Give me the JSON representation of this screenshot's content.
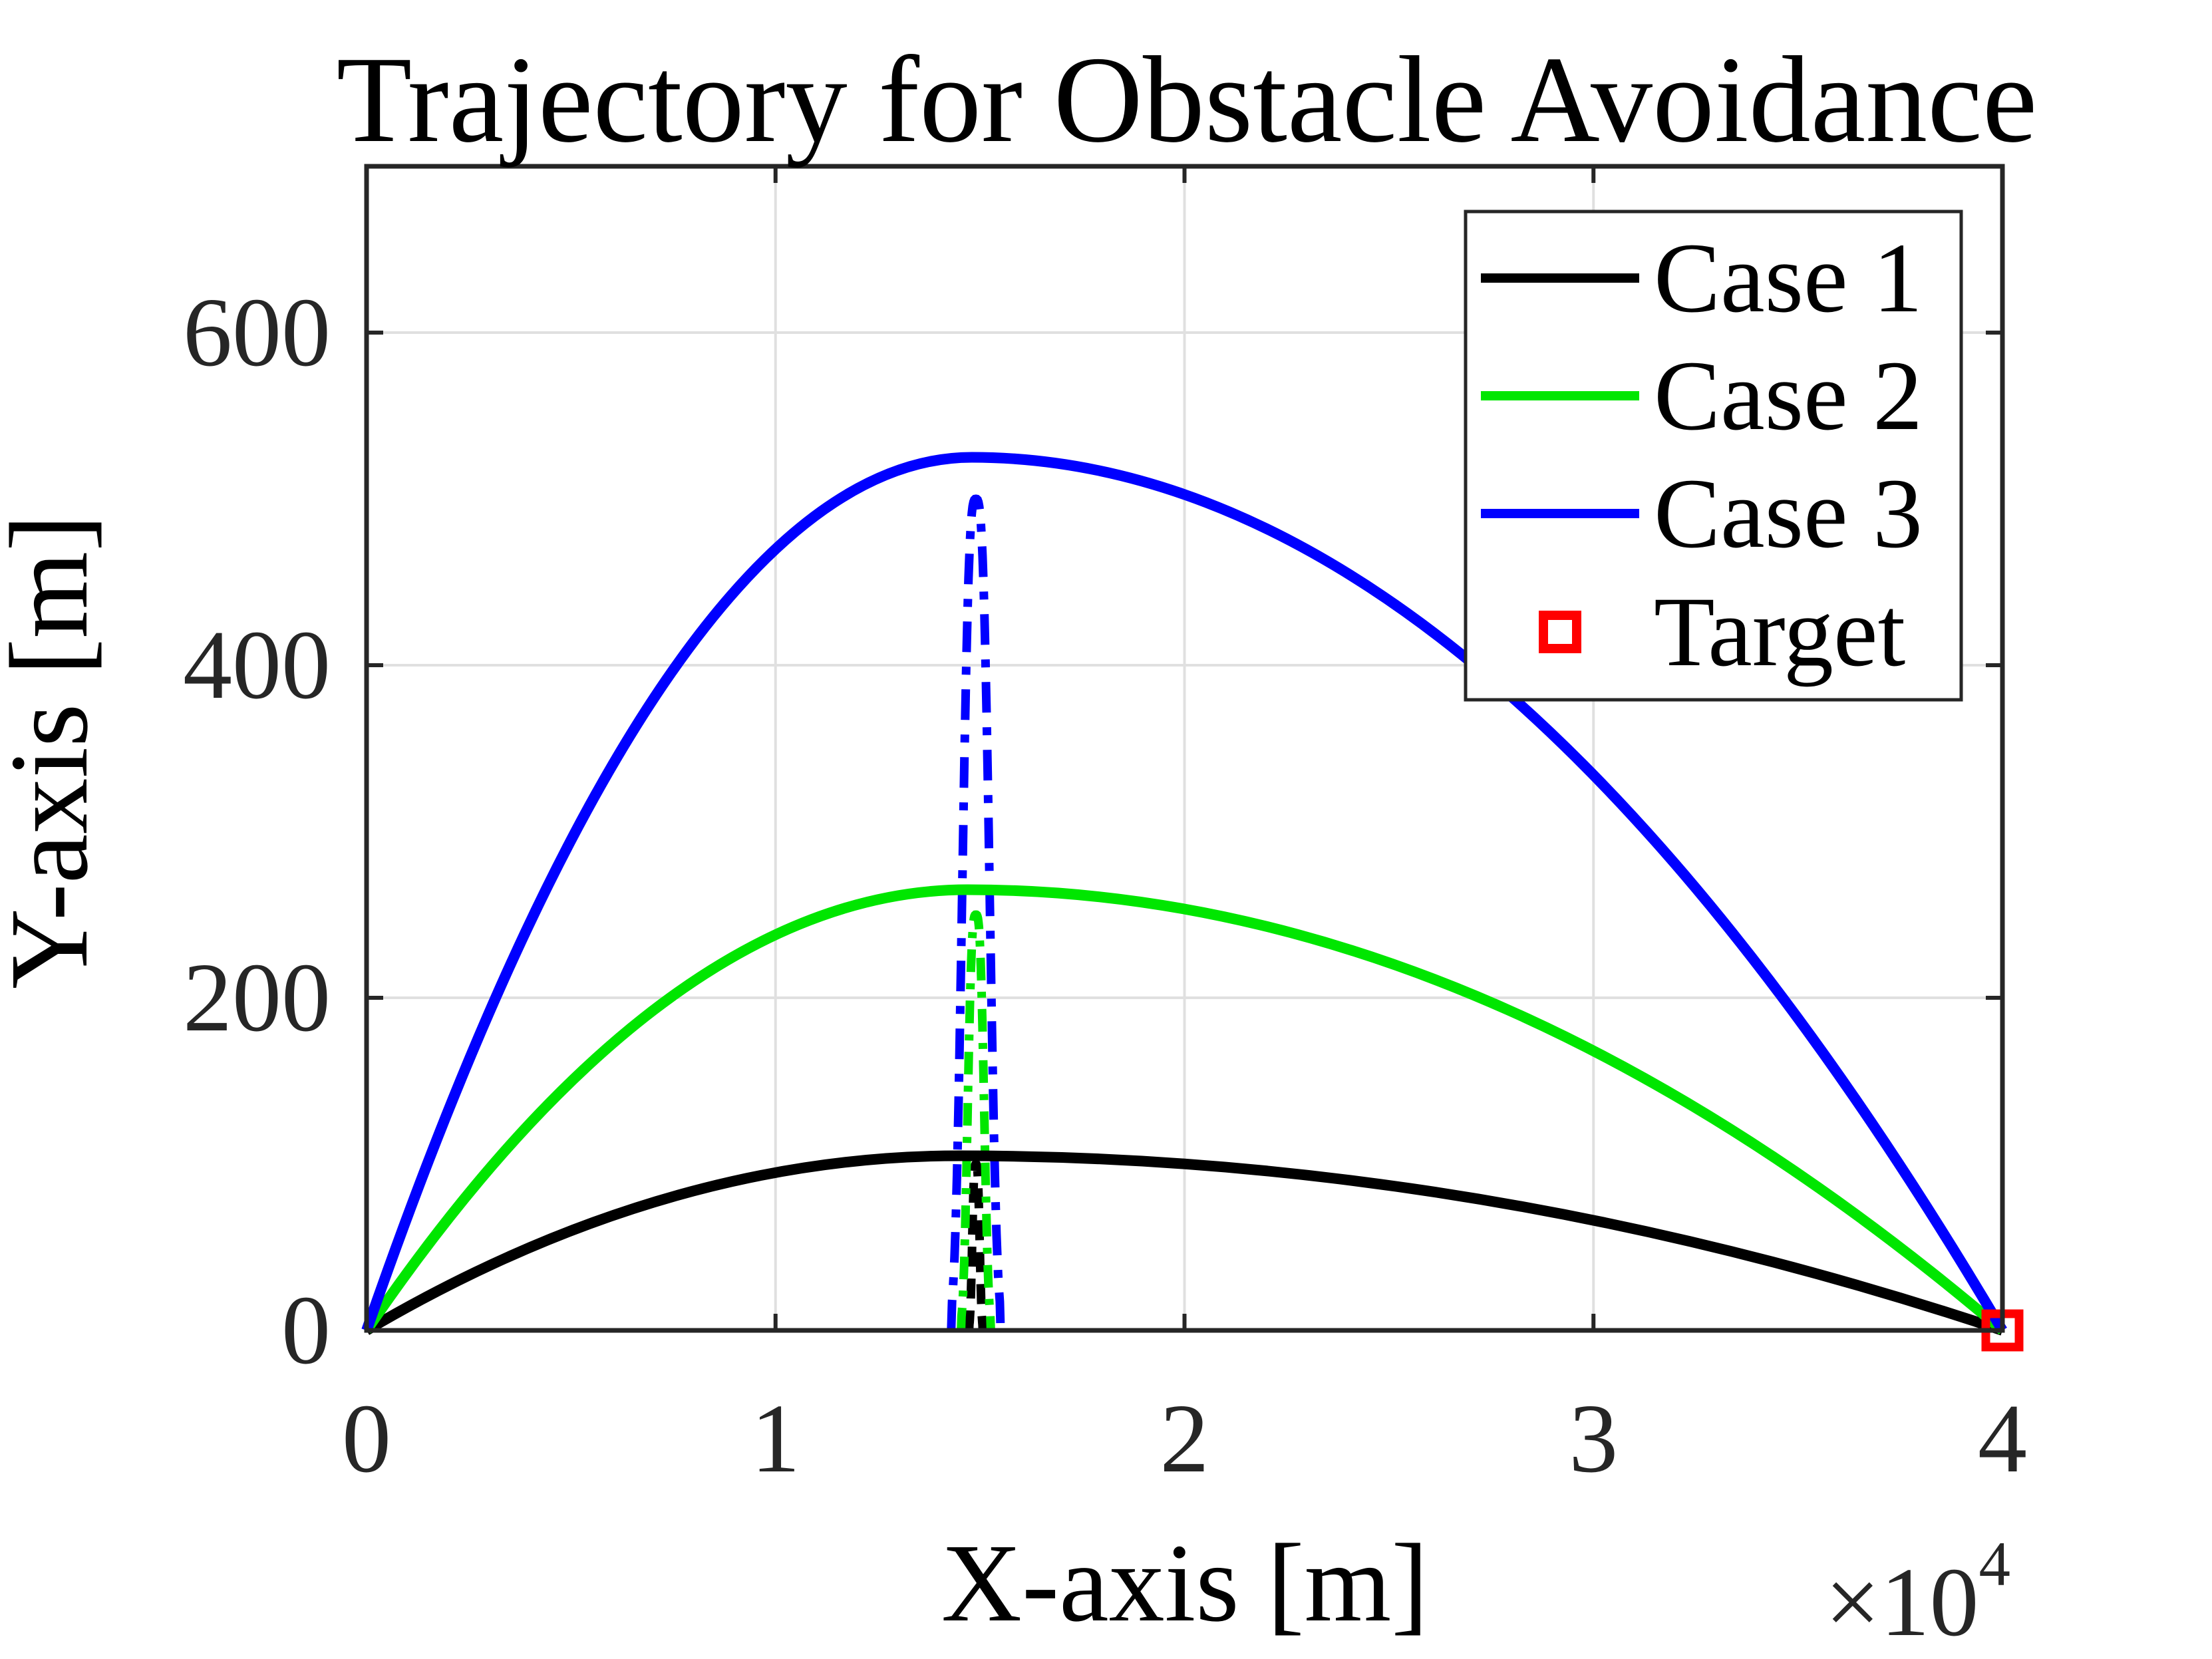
{
  "chart_data": {
    "type": "line",
    "title": "Trajectory for Obstacle Avoidance",
    "xlabel": "X-axis [m]",
    "ylabel": "Y-axis [m]",
    "xlim": [
      0,
      40000
    ],
    "ylim": [
      0,
      700
    ],
    "x_ticks": [
      0,
      10000,
      20000,
      30000,
      40000
    ],
    "x_tick_labels": [
      "0",
      "1",
      "2",
      "3",
      "4"
    ],
    "x_multiplier_base": "×10",
    "x_multiplier_exp": "4",
    "y_ticks": [
      0,
      200,
      400,
      600
    ],
    "y_tick_labels": [
      "0",
      "200",
      "400",
      "600"
    ],
    "grid": true,
    "legend_position": "northeast",
    "axis_color": "#262626",
    "grid_color": "#e0e0e0",
    "series": [
      {
        "name": "Case 1",
        "color": "#000000",
        "line_style": "solid",
        "start_m": [
          0,
          0
        ],
        "apex_m": [
          14500,
          105
        ],
        "end_m": [
          40000,
          0
        ],
        "points": {
          "x_m": [
            0,
            5000,
            10000,
            14500,
            20000,
            25000,
            30000,
            35000,
            40000
          ],
          "y_m": [
            0,
            60,
            95,
            105,
            100,
            87,
            66,
            37,
            0
          ]
        }
      },
      {
        "name": "Case 2",
        "color": "#00e600",
        "line_style": "solid",
        "start_m": [
          0,
          0
        ],
        "apex_m": [
          14700,
          265
        ],
        "end_m": [
          40000,
          0
        ],
        "points": {
          "x_m": [
            0,
            5000,
            10000,
            14700,
            20000,
            25000,
            30000,
            35000,
            40000
          ],
          "y_m": [
            0,
            150,
            238,
            265,
            253,
            221,
            168,
            94,
            0
          ]
        }
      },
      {
        "name": "Case 3",
        "color": "#0000ff",
        "line_style": "solid",
        "start_m": [
          0,
          0
        ],
        "apex_m": [
          14800,
          525
        ],
        "end_m": [
          40000,
          0
        ],
        "points": {
          "x_m": [
            0,
            5000,
            10000,
            14800,
            20000,
            25000,
            30000,
            35000,
            40000
          ],
          "y_m": [
            0,
            295,
            470,
            525,
            503,
            439,
            334,
            188,
            0
          ]
        }
      }
    ],
    "obstacle_boundaries": [
      {
        "name": "Case 1 obstacle boundary",
        "color": "#000000",
        "line_style": "dashed",
        "center_x_m": 14900,
        "peak_height_m": 100,
        "width_param_m": 107,
        "base_half_width_m": 165
      },
      {
        "name": "Case 2 obstacle boundary",
        "color": "#00e600",
        "line_style": "dash-dot-small",
        "center_x_m": 14900,
        "peak_height_m": 250,
        "width_param_m": 235,
        "base_half_width_m": 365
      },
      {
        "name": "Case 3 obstacle boundary",
        "color": "#0000ff",
        "line_style": "dash-dot",
        "center_x_m": 14900,
        "peak_height_m": 500,
        "width_param_m": 390,
        "base_half_width_m": 605
      }
    ],
    "target": {
      "label": "Target",
      "x_m": 40000,
      "y_m": 0,
      "marker": "open-square",
      "color": "#ff0000"
    }
  }
}
